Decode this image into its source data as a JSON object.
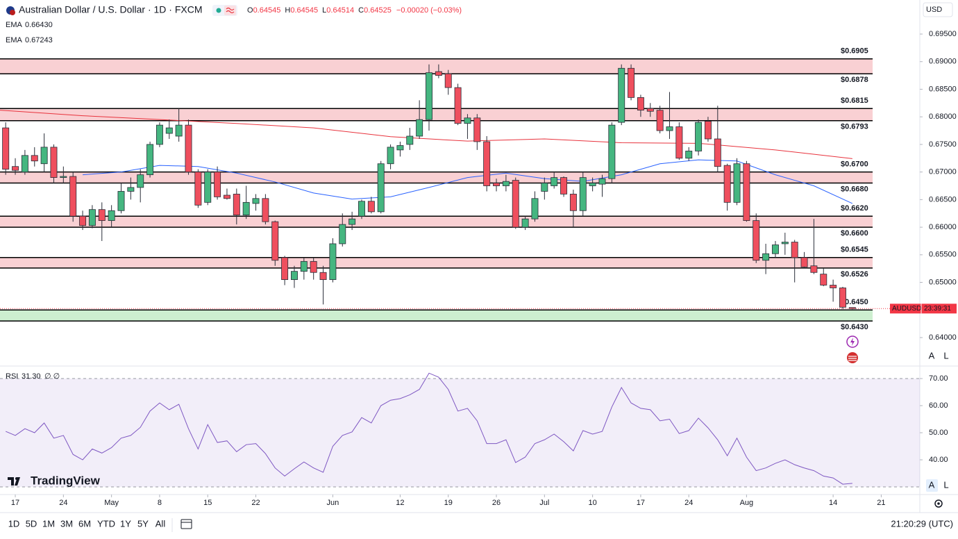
{
  "header": {
    "currency": "USD",
    "scale_buttons": [
      "A",
      "L"
    ],
    "logo": "TradingView",
    "ranges": [
      "1D",
      "5D",
      "1M",
      "3M",
      "6M",
      "YTD",
      "1Y",
      "5Y",
      "All"
    ],
    "clock": "21:20:29 (UTC)",
    "symbol": "AUDUSD",
    "countdown": "23:39:31"
  },
  "chart_data": [
    {
      "type": "candlestick",
      "title": "Australian Dollar / U.S. Dollar · 1D · FXCM",
      "ohlc_labels": [
        "O",
        "H",
        "L",
        "C"
      ],
      "change": "−0.00020 (−0.03%)",
      "up_color": "#45b680",
      "down_color": "#ef4f5e",
      "last_price_color": "#f23645",
      "xlim": [
        -0.59,
        95.01
      ],
      "ylim": [
        0.63484,
        0.70117
      ],
      "xticks": [
        {
          "value": 1,
          "label": "17"
        },
        {
          "value": 6,
          "label": "24"
        },
        {
          "value": 11,
          "label": "May"
        },
        {
          "value": 16,
          "label": "8"
        },
        {
          "value": 21,
          "label": "15"
        },
        {
          "value": 26,
          "label": "22"
        },
        {
          "value": 34,
          "label": "Jun"
        },
        {
          "value": 41,
          "label": "12"
        },
        {
          "value": 46,
          "label": "19"
        },
        {
          "value": 51,
          "label": "26"
        },
        {
          "value": 56,
          "label": "Jul"
        },
        {
          "value": 61,
          "label": "10"
        },
        {
          "value": 66,
          "label": "17"
        },
        {
          "value": 71,
          "label": "24"
        },
        {
          "value": 77,
          "label": "Aug"
        },
        {
          "value": 86,
          "label": "14"
        },
        {
          "value": 91,
          "label": "21"
        }
      ],
      "yticks": [
        {
          "value": 0.695,
          "label": "0.69500"
        },
        {
          "value": 0.69,
          "label": "0.69000"
        },
        {
          "value": 0.685,
          "label": "0.68500"
        },
        {
          "value": 0.68,
          "label": "0.68000"
        },
        {
          "value": 0.675,
          "label": "0.67500"
        },
        {
          "value": 0.67,
          "label": "0.67000"
        },
        {
          "value": 0.665,
          "label": "0.66500"
        },
        {
          "value": 0.66,
          "label": "0.66000"
        },
        {
          "value": 0.655,
          "label": "0.65500"
        },
        {
          "value": 0.65,
          "label": "0.65000"
        },
        {
          "value": 0.645,
          "label": "0.64500"
        },
        {
          "value": 0.64,
          "label": "0.64000"
        }
      ],
      "grid": false,
      "zone_border_color": "#000000",
      "zones": [
        {
          "top": {
            "value": 0.6905,
            "label": "$0.6905"
          },
          "bottom": {
            "value": 0.6878,
            "label": "$0.6878"
          },
          "color": "#f9d0d3"
        },
        {
          "top": {
            "value": 0.6815,
            "label": "$0.6815"
          },
          "bottom": {
            "value": 0.6793,
            "label": "$0.6793"
          },
          "color": "#f9d0d3"
        },
        {
          "top": {
            "value": 0.67,
            "label": "$0.6700"
          },
          "bottom": {
            "value": 0.668,
            "label": "$0.6680"
          },
          "color": "#f9d0d3"
        },
        {
          "top": {
            "value": 0.662,
            "label": "$0.6620"
          },
          "bottom": {
            "value": 0.66,
            "label": "$0.6600"
          },
          "color": "#f9d0d3"
        },
        {
          "top": {
            "value": 0.6545,
            "label": "$0.6545"
          },
          "bottom": {
            "value": 0.6526,
            "label": "$0.6526"
          },
          "color": "#f9d0d3"
        },
        {
          "top": {
            "value": 0.645,
            "label": "$0.6450"
          },
          "bottom": {
            "value": 0.643,
            "label": "$0.6430"
          },
          "color": "#cdefd0"
        }
      ],
      "lines": [
        {
          "name": "EMA",
          "color": "#2962ff",
          "value_label": "0.66430",
          "x": [
            8,
            12,
            16,
            20,
            24,
            28,
            32,
            36,
            40,
            44,
            48,
            52,
            56,
            60,
            64,
            68,
            72,
            76,
            80,
            84,
            88
          ],
          "values": [
            0.6695,
            0.67,
            0.6712,
            0.671,
            0.6698,
            0.6682,
            0.6662,
            0.6651,
            0.6655,
            0.6672,
            0.669,
            0.6698,
            0.6688,
            0.6683,
            0.6695,
            0.6715,
            0.6722,
            0.672,
            0.6695,
            0.6675,
            0.6643
          ]
        },
        {
          "name": "EMA",
          "color": "#e8323c",
          "value_label": "0.67243",
          "x": [
            -0.59,
            8,
            16,
            24,
            32,
            40,
            48,
            56,
            64,
            72,
            80,
            88
          ],
          "values": [
            0.6812,
            0.6802,
            0.6795,
            0.6788,
            0.678,
            0.6764,
            0.6756,
            0.676,
            0.6753,
            0.6752,
            0.674,
            0.67243
          ]
        }
      ],
      "open": [
        0.678,
        0.671,
        0.67,
        0.673,
        0.6715,
        0.6745,
        0.669,
        0.6692,
        0.662,
        0.6603,
        0.6632,
        0.6612,
        0.663,
        0.6665,
        0.6672,
        0.6695,
        0.675,
        0.677,
        0.6765,
        0.6785,
        0.67,
        0.6645,
        0.67,
        0.6658,
        0.666,
        0.6622,
        0.6643,
        0.6652,
        0.661,
        0.6545,
        0.6505,
        0.652,
        0.6538,
        0.6518,
        0.6505,
        0.657,
        0.6605,
        0.662,
        0.6647,
        0.6628,
        0.6715,
        0.674,
        0.675,
        0.6765,
        0.6795,
        0.6882,
        0.6878,
        0.6853,
        0.6788,
        0.6798,
        0.6755,
        0.668,
        0.6675,
        0.6685,
        0.66,
        0.6615,
        0.6665,
        0.6675,
        0.669,
        0.666,
        0.663,
        0.6675,
        0.6678,
        0.6688,
        0.679,
        0.6888,
        0.6835,
        0.6815,
        0.6812,
        0.6775,
        0.6782,
        0.6725,
        0.6738,
        0.6792,
        0.676,
        0.6712,
        0.6645,
        0.6715,
        0.6612,
        0.654,
        0.6552,
        0.657,
        0.6573,
        0.6545,
        0.653,
        0.6515,
        0.6495,
        0.649,
        0.64545
      ],
      "high": [
        0.679,
        0.6725,
        0.674,
        0.6745,
        0.677,
        0.675,
        0.671,
        0.67,
        0.663,
        0.664,
        0.6645,
        0.664,
        0.668,
        0.669,
        0.6705,
        0.6755,
        0.679,
        0.6795,
        0.6815,
        0.6795,
        0.6705,
        0.6705,
        0.671,
        0.667,
        0.667,
        0.6675,
        0.666,
        0.666,
        0.6612,
        0.6548,
        0.653,
        0.6545,
        0.6545,
        0.653,
        0.658,
        0.6625,
        0.6628,
        0.665,
        0.6655,
        0.672,
        0.675,
        0.6755,
        0.678,
        0.683,
        0.6895,
        0.6895,
        0.6885,
        0.686,
        0.6805,
        0.6805,
        0.6765,
        0.6688,
        0.6695,
        0.669,
        0.662,
        0.6665,
        0.669,
        0.67,
        0.6692,
        0.6668,
        0.67,
        0.669,
        0.6695,
        0.679,
        0.6895,
        0.6895,
        0.684,
        0.6825,
        0.682,
        0.6845,
        0.679,
        0.6745,
        0.6795,
        0.68,
        0.682,
        0.6715,
        0.6725,
        0.672,
        0.6625,
        0.657,
        0.6575,
        0.659,
        0.6577,
        0.6555,
        0.6615,
        0.6525,
        0.6505,
        0.6492,
        0.64545
      ],
      "low": [
        0.6695,
        0.6695,
        0.6695,
        0.671,
        0.67,
        0.668,
        0.668,
        0.661,
        0.6595,
        0.6598,
        0.6575,
        0.66,
        0.6625,
        0.665,
        0.6645,
        0.669,
        0.6745,
        0.676,
        0.6755,
        0.6695,
        0.6635,
        0.664,
        0.665,
        0.665,
        0.6605,
        0.6615,
        0.663,
        0.6605,
        0.653,
        0.6495,
        0.649,
        0.6505,
        0.6505,
        0.646,
        0.65,
        0.6565,
        0.6595,
        0.6615,
        0.6625,
        0.6625,
        0.6705,
        0.6728,
        0.674,
        0.676,
        0.6775,
        0.687,
        0.684,
        0.6785,
        0.676,
        0.674,
        0.6665,
        0.6665,
        0.6665,
        0.6597,
        0.6595,
        0.661,
        0.665,
        0.667,
        0.6655,
        0.66,
        0.662,
        0.6665,
        0.6655,
        0.668,
        0.6785,
        0.683,
        0.68,
        0.68,
        0.677,
        0.676,
        0.6722,
        0.672,
        0.673,
        0.6755,
        0.67,
        0.663,
        0.664,
        0.661,
        0.6535,
        0.6515,
        0.6545,
        0.655,
        0.65,
        0.6525,
        0.6515,
        0.6493,
        0.6465,
        0.6452,
        0.64514
      ],
      "close": [
        0.6705,
        0.6703,
        0.673,
        0.672,
        0.6745,
        0.669,
        0.6692,
        0.662,
        0.6603,
        0.6632,
        0.6612,
        0.663,
        0.6665,
        0.6672,
        0.6695,
        0.675,
        0.6785,
        0.678,
        0.6785,
        0.67,
        0.664,
        0.67,
        0.6655,
        0.6652,
        0.6622,
        0.6645,
        0.6652,
        0.661,
        0.654,
        0.6505,
        0.652,
        0.6538,
        0.6518,
        0.6505,
        0.657,
        0.6605,
        0.6615,
        0.6647,
        0.6628,
        0.6715,
        0.6745,
        0.6748,
        0.6765,
        0.6795,
        0.688,
        0.6875,
        0.6853,
        0.6788,
        0.6798,
        0.6755,
        0.6675,
        0.6675,
        0.6683,
        0.66,
        0.6615,
        0.6652,
        0.668,
        0.669,
        0.666,
        0.663,
        0.669,
        0.668,
        0.6688,
        0.6785,
        0.6888,
        0.6835,
        0.6812,
        0.681,
        0.6775,
        0.6782,
        0.6725,
        0.6738,
        0.679,
        0.676,
        0.671,
        0.6645,
        0.6715,
        0.6612,
        0.654,
        0.6552,
        0.6568,
        0.6573,
        0.6545,
        0.6528,
        0.6518,
        0.6495,
        0.649,
        0.6455,
        0.64525
      ]
    },
    {
      "type": "line",
      "title": "RSI",
      "value_label": "31.30",
      "legend_extra": "∅ ∅",
      "color": "#7e57c2",
      "ylim": [
        27.18,
        74.62
      ],
      "yticks": [
        {
          "value": 70,
          "label": "70.00"
        },
        {
          "value": 60,
          "label": "60.00"
        },
        {
          "value": 50,
          "label": "50.00"
        },
        {
          "value": 40,
          "label": "40.00"
        }
      ],
      "band": [
        30,
        70
      ],
      "band_color": "#7e57c2",
      "values": [
        50.5,
        49,
        51.5,
        50,
        53.6,
        48,
        49,
        42,
        40,
        44,
        42.5,
        44.5,
        48,
        49,
        52,
        58,
        61,
        58.5,
        60.5,
        51.5,
        44,
        53,
        46.4,
        47,
        43,
        45.6,
        46,
        42.3,
        37,
        34,
        36.7,
        39.2,
        37,
        35.4,
        45,
        49,
        50.3,
        55.6,
        53.6,
        60,
        62,
        62.6,
        64,
        66,
        72,
        70.5,
        66,
        58,
        59,
        54.4,
        46,
        46,
        47.4,
        39,
        41,
        46,
        47.4,
        49.5,
        46.7,
        43.3,
        50.8,
        49.5,
        50.5,
        59.5,
        66.7,
        61,
        59,
        58.5,
        54.4,
        55,
        49.7,
        50.8,
        55.4,
        51.8,
        47.4,
        41.5,
        48,
        41,
        36,
        37,
        38.7,
        40,
        38.2,
        37,
        36,
        34,
        33.3,
        31,
        31.3
      ]
    }
  ]
}
